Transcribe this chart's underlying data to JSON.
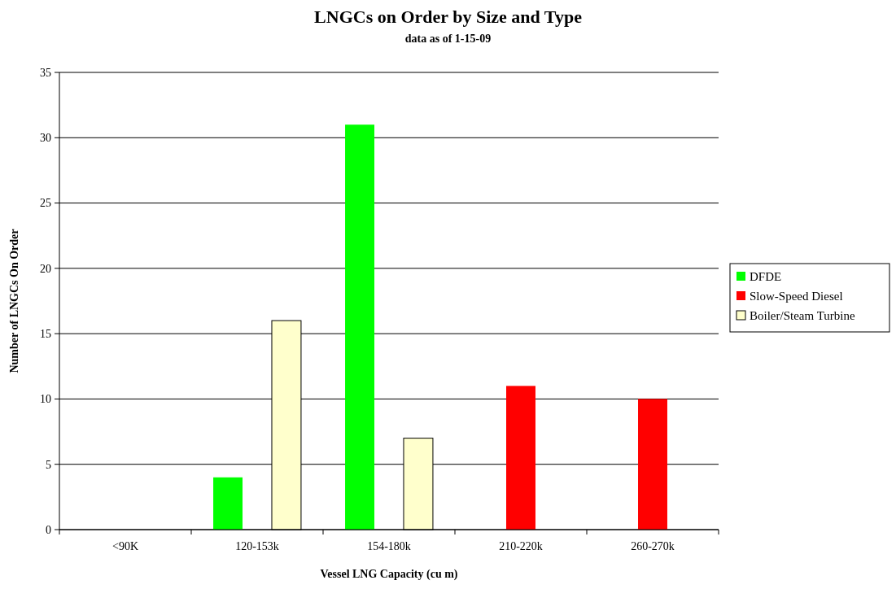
{
  "chart_data": {
    "type": "bar",
    "title": "LNGCs on Order by Size and Type",
    "subtitle": "data as of 1-15-09",
    "xlabel": "Vessel LNG Capacity (cu m)",
    "ylabel": "Number of LNGCs On Order",
    "categories": [
      "<90K",
      "120-153k",
      "154-180k",
      "210-220k",
      "260-270k"
    ],
    "series": [
      {
        "name": "DFDE",
        "color": "#00ff00",
        "values": [
          null,
          4,
          31,
          null,
          null
        ]
      },
      {
        "name": "Slow-Speed Diesel",
        "color": "#ff0000",
        "values": [
          null,
          null,
          null,
          11,
          10
        ]
      },
      {
        "name": "Boiler/Steam Turbine",
        "color": "#ffffcc",
        "values": [
          null,
          16,
          7,
          null,
          null
        ]
      }
    ],
    "ylim": [
      0,
      35
    ],
    "yticks": [
      0,
      5,
      10,
      15,
      20,
      25,
      30,
      35
    ],
    "grid": "y",
    "legend": "right"
  }
}
